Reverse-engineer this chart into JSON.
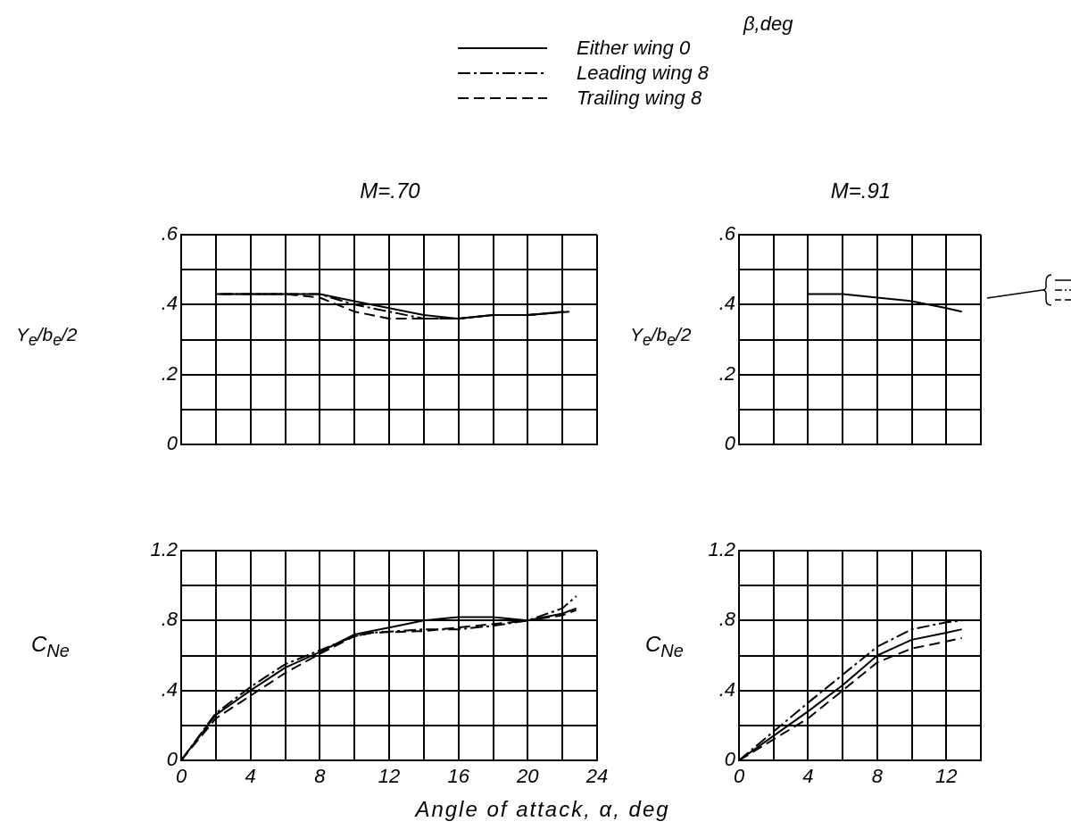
{
  "chart_data": [
    {
      "type": "line",
      "title": "M=.70",
      "ylabel": "Y$_{e}$/b$_{e}$/2",
      "legend": "top",
      "legend_title": "β,deg",
      "grid": true,
      "tick_labels": "y",
      "marker": "none",
      "xlim": [
        0,
        24
      ],
      "xticks": [
        0,
        {
          "value": 2,
          "label": null
        },
        4,
        {
          "value": 6,
          "label": null
        },
        8,
        {
          "value": 10,
          "label": null
        },
        12,
        {
          "value": 14,
          "label": null
        },
        16,
        {
          "value": 18,
          "label": null
        },
        20,
        {
          "value": 22,
          "label": null
        },
        24
      ],
      "ylim": [
        0,
        0.6
      ],
      "yticks": [
        {
          "value": 0,
          "label": "0"
        },
        {
          "value": 0.1,
          "label": null
        },
        {
          "value": 0.2,
          "label": ".2"
        },
        {
          "value": 0.3,
          "label": null
        },
        {
          "value": 0.4,
          "label": ".4"
        },
        {
          "value": 0.5,
          "label": null
        },
        {
          "value": 0.6,
          "label": ".6"
        }
      ],
      "series": [
        {
          "name": "Either wing 0",
          "color": "#000000",
          "line_style": "solid",
          "x": [
            2,
            4,
            6,
            8,
            10,
            12,
            14,
            16,
            18,
            20,
            22.4
          ],
          "values": [
            0.43,
            0.43,
            0.43,
            0.43,
            0.41,
            0.39,
            0.37,
            0.36,
            0.37,
            0.37,
            0.38
          ]
        },
        {
          "name": "Leading wing 8",
          "color": "#000000",
          "line_style": "dashdot",
          "x": [
            2.2,
            4,
            6,
            8,
            10,
            12,
            14,
            16,
            18,
            20,
            22.3
          ],
          "values": [
            0.43,
            0.43,
            0.43,
            0.43,
            0.4,
            0.38,
            0.36,
            0.36,
            0.37,
            0.37,
            0.38
          ]
        },
        {
          "name": "Trailing wing 8",
          "color": "#000000",
          "line_style": "dashed",
          "x": [
            2.4,
            4,
            6,
            8,
            9,
            10,
            12,
            14,
            16,
            18,
            20,
            22.1
          ],
          "values": [
            0.43,
            0.43,
            0.43,
            0.42,
            0.4,
            0.38,
            0.36,
            0.36,
            0.36,
            0.37,
            0.37,
            0.38
          ]
        }
      ]
    },
    {
      "type": "line",
      "title": "M=.91",
      "ylabel": "Y$_{e}$/b$_{e}$/2",
      "grid": true,
      "tick_labels": "y",
      "marker": "none",
      "xlim": [
        0,
        14
      ],
      "xticks": [
        0,
        {
          "value": 2,
          "label": null
        },
        4,
        {
          "value": 6,
          "label": null
        },
        8,
        {
          "value": 10,
          "label": null
        },
        12,
        {
          "value": 14,
          "label": null
        }
      ],
      "ylim": [
        0,
        0.6
      ],
      "yticks": [
        {
          "value": 0,
          "label": "0"
        },
        {
          "value": 0.1,
          "label": null
        },
        {
          "value": 0.2,
          "label": ".2"
        },
        {
          "value": 0.3,
          "label": null
        },
        {
          "value": 0.4,
          "label": ".4"
        },
        {
          "value": 0.5,
          "label": null
        },
        {
          "value": 0.6,
          "label": ".6"
        }
      ],
      "series": [
        {
          "color": "#000000",
          "line_style": "solid",
          "x": [
            4,
            6,
            8,
            10,
            12,
            12.9
          ],
          "values": [
            0.43,
            0.43,
            0.42,
            0.41,
            0.39,
            0.38
          ]
        }
      ]
    },
    {
      "type": "line",
      "ylabel": "C$_{Ne}$",
      "xlabel": "Angle of attack, α, deg",
      "grid": true,
      "marker": "none",
      "xlim": [
        0,
        24
      ],
      "xticks": [
        0,
        {
          "value": 2,
          "label": null
        },
        4,
        {
          "value": 6,
          "label": null
        },
        8,
        {
          "value": 10,
          "label": null
        },
        12,
        {
          "value": 14,
          "label": null
        },
        16,
        {
          "value": 18,
          "label": null
        },
        20,
        {
          "value": 22,
          "label": null
        },
        24
      ],
      "ylim": [
        0,
        1.2
      ],
      "yticks": [
        {
          "value": 0,
          "label": "0"
        },
        {
          "value": 0.2,
          "label": null
        },
        {
          "value": 0.4,
          "label": ".4"
        },
        {
          "value": 0.6,
          "label": null
        },
        {
          "value": 0.8,
          "label": ".8"
        },
        {
          "value": 1.0,
          "label": null
        },
        {
          "value": 1.2,
          "label": "1.2"
        }
      ],
      "series": [
        {
          "color": "#000000",
          "line_style": "solid",
          "x": [
            0,
            2,
            4,
            6,
            8,
            10,
            11,
            12,
            14,
            16,
            18,
            20,
            22,
            22.8
          ],
          "values": [
            0,
            0.26,
            0.4,
            0.53,
            0.62,
            0.72,
            0.74,
            0.76,
            0.8,
            0.82,
            0.82,
            0.8,
            0.84,
            0.87
          ]
        },
        {
          "color": "#000000",
          "line_style": "dashdot",
          "x": [
            0,
            2,
            4,
            6,
            8,
            10,
            11,
            14,
            16,
            18,
            20,
            22,
            22.8
          ],
          "values": [
            0,
            0.27,
            0.42,
            0.55,
            0.63,
            0.71,
            0.73,
            0.75,
            0.75,
            0.77,
            0.8,
            0.87,
            0.94
          ]
        },
        {
          "color": "#000000",
          "line_style": "dashed",
          "x": [
            0,
            2,
            4,
            6,
            8,
            10,
            11,
            14,
            16,
            18,
            20,
            22,
            22.8
          ],
          "values": [
            0,
            0.24,
            0.37,
            0.5,
            0.61,
            0.71,
            0.73,
            0.74,
            0.76,
            0.78,
            0.8,
            0.83,
            0.86
          ]
        }
      ]
    },
    {
      "type": "line",
      "ylabel": "C$_{Ne}$",
      "grid": true,
      "marker": "none",
      "xlim": [
        0,
        14
      ],
      "xticks": [
        0,
        {
          "value": 2,
          "label": null
        },
        4,
        {
          "value": 6,
          "label": null
        },
        8,
        {
          "value": 10,
          "label": null
        },
        12,
        {
          "value": 14,
          "label": null
        }
      ],
      "ylim": [
        0,
        1.2
      ],
      "yticks": [
        {
          "value": 0,
          "label": "0"
        },
        {
          "value": 0.2,
          "label": null
        },
        {
          "value": 0.4,
          "label": ".4"
        },
        {
          "value": 0.6,
          "label": null
        },
        {
          "value": 0.8,
          "label": ".8"
        },
        {
          "value": 1.0,
          "label": null
        },
        {
          "value": 1.2,
          "label": "1.2"
        }
      ],
      "series": [
        {
          "color": "#000000",
          "line_style": "solid",
          "x": [
            0,
            4,
            6,
            8,
            10,
            12,
            12.9
          ],
          "values": [
            0,
            0.28,
            0.43,
            0.6,
            0.69,
            0.73,
            0.75
          ]
        },
        {
          "color": "#000000",
          "line_style": "dashdot",
          "x": [
            0,
            4,
            6,
            8,
            10,
            12,
            12.9
          ],
          "values": [
            0,
            0.33,
            0.49,
            0.65,
            0.75,
            0.79,
            0.8
          ]
        },
        {
          "color": "#000000",
          "line_style": "dashed",
          "x": [
            0,
            4,
            6,
            8,
            10,
            12,
            12.9
          ],
          "values": [
            0,
            0.24,
            0.4,
            0.56,
            0.64,
            0.68,
            0.7
          ]
        }
      ]
    }
  ]
}
